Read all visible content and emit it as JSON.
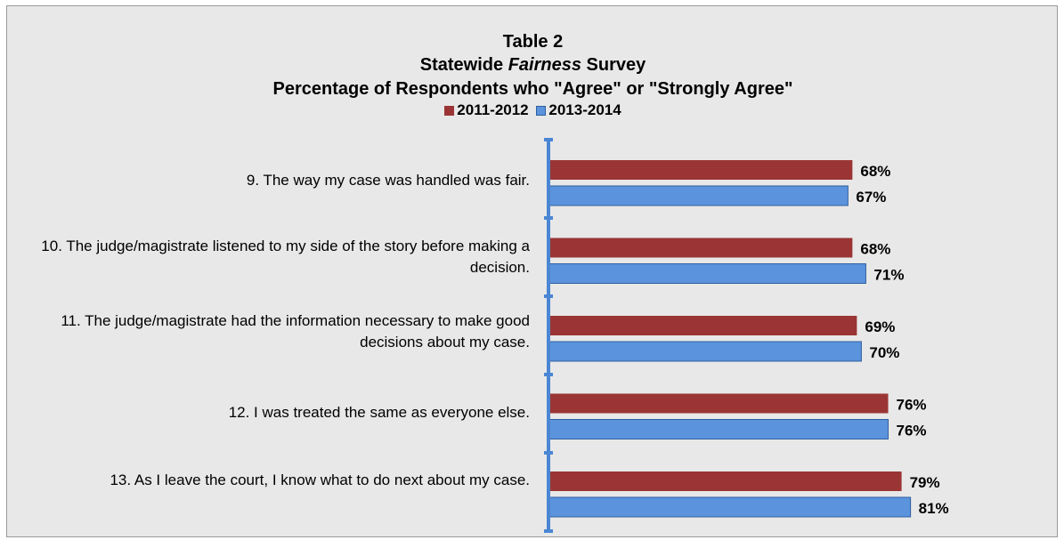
{
  "colors": {
    "series_2011": "#9b3535",
    "series_2013": "#5b93dd",
    "series_2013_border": "#2f5f9f",
    "axis": "#4a86d4"
  },
  "chart_data": {
    "type": "bar",
    "orientation": "horizontal",
    "title_line1": "Table 2",
    "title_line2_pre": "Statewide ",
    "title_line2_italic": "Fairness",
    "title_line2_post": " Survey",
    "title_line3": "Percentage of Respondents who \"Agree\" or \"Strongly Agree\"",
    "legend_position": "top",
    "categories": [
      "9.  The way my case was handled was fair.",
      "10.  The judge/magistrate listened to my side of the story before making a decision.",
      "11.  The judge/magistrate had the information necessary to make good decisions about my case.",
      "12.  I was treated the same as everyone else.",
      "13.  As I leave the court, I know what to do next about my case."
    ],
    "series": [
      {
        "name": "2011-2012",
        "values": [
          68,
          68,
          69,
          76,
          79
        ],
        "labels": [
          "68%",
          "68%",
          "69%",
          "76%",
          "79%"
        ]
      },
      {
        "name": "2013-2014",
        "values": [
          67,
          71,
          70,
          76,
          81
        ],
        "labels": [
          "67%",
          "71%",
          "70%",
          "76%",
          "81%"
        ]
      }
    ],
    "xlim": [
      0,
      100
    ],
    "grid": false
  }
}
